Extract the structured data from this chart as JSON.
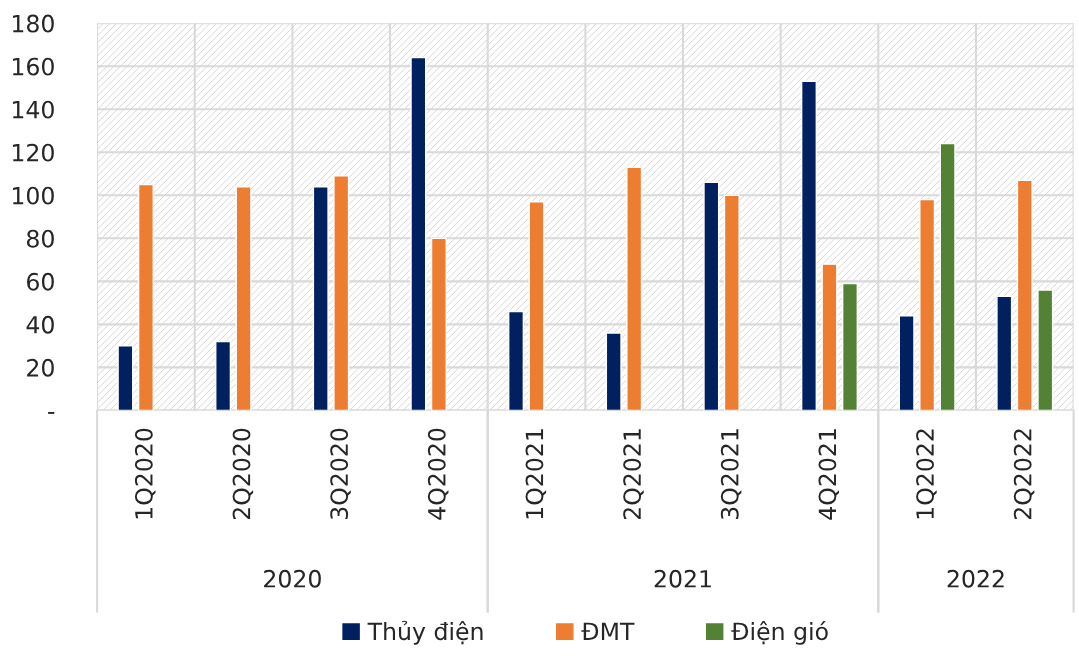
{
  "chart_data": {
    "type": "bar",
    "categories": [
      "1Q2020",
      "2Q2020",
      "3Q2020",
      "4Q2020",
      "1Q2021",
      "2Q2021",
      "3Q2021",
      "4Q2021",
      "1Q2022",
      "2Q2022"
    ],
    "series": [
      {
        "name": "Thủy điện",
        "color": "#002060",
        "values": [
          30,
          32,
          104,
          164,
          46,
          36,
          106,
          153,
          44,
          53
        ]
      },
      {
        "name": "ĐMT",
        "color": "#ed7d31",
        "values": [
          105,
          104,
          109,
          80,
          97,
          113,
          100,
          68,
          98,
          107
        ]
      },
      {
        "name": "Điện gió",
        "color": "#548235",
        "values": [
          null,
          null,
          null,
          null,
          null,
          null,
          null,
          59,
          124,
          56
        ]
      }
    ],
    "ylim": [
      0,
      180
    ],
    "yticks": [
      {
        "value": 0,
        "label": "-"
      },
      20,
      40,
      60,
      80,
      100,
      120,
      140,
      160,
      180
    ],
    "grid": true,
    "legend": "bottom",
    "annotations": [
      "2020",
      "2021",
      "2022"
    ]
  }
}
